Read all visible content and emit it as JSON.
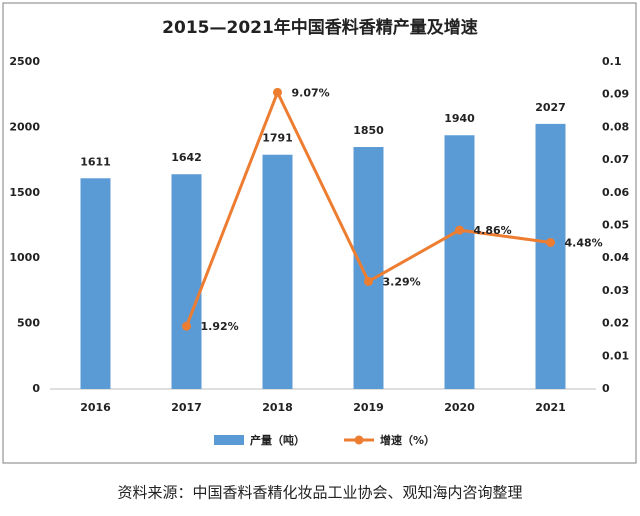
{
  "chart_data": {
    "type": "bar",
    "title": "2015—2021年中国香料香精产量及增速",
    "categories": [
      "2016",
      "2017",
      "2018",
      "2019",
      "2020",
      "2021"
    ],
    "series": [
      {
        "name": "产量（吨）",
        "type": "bar",
        "color": "#5b9bd5",
        "values": [
          1611,
          1642,
          1791,
          1850,
          1940,
          2027
        ]
      },
      {
        "name": "增速（%）",
        "type": "line",
        "axis": "y2",
        "color": "#ed7d31",
        "values": [
          null,
          0.0192,
          0.0907,
          0.0329,
          0.0486,
          0.0448
        ],
        "value_labels": [
          null,
          "1.92%",
          "9.07%",
          "3.29%",
          "4.86%",
          "4.48%"
        ]
      }
    ],
    "ylim": [
      0,
      2500
    ],
    "yticks": [
      0,
      500,
      1000,
      1500,
      2000,
      2500
    ],
    "y2lim": [
      0,
      0.1
    ],
    "y2ticks": [
      0,
      0.01,
      0.02,
      0.03,
      0.04,
      0.05,
      0.06,
      0.07,
      0.08,
      0.09,
      0.1
    ],
    "grid": false,
    "legend": "bottom",
    "source": "资料来源：中国香料香精化妆品工业协会、观知海内咨询整理"
  }
}
